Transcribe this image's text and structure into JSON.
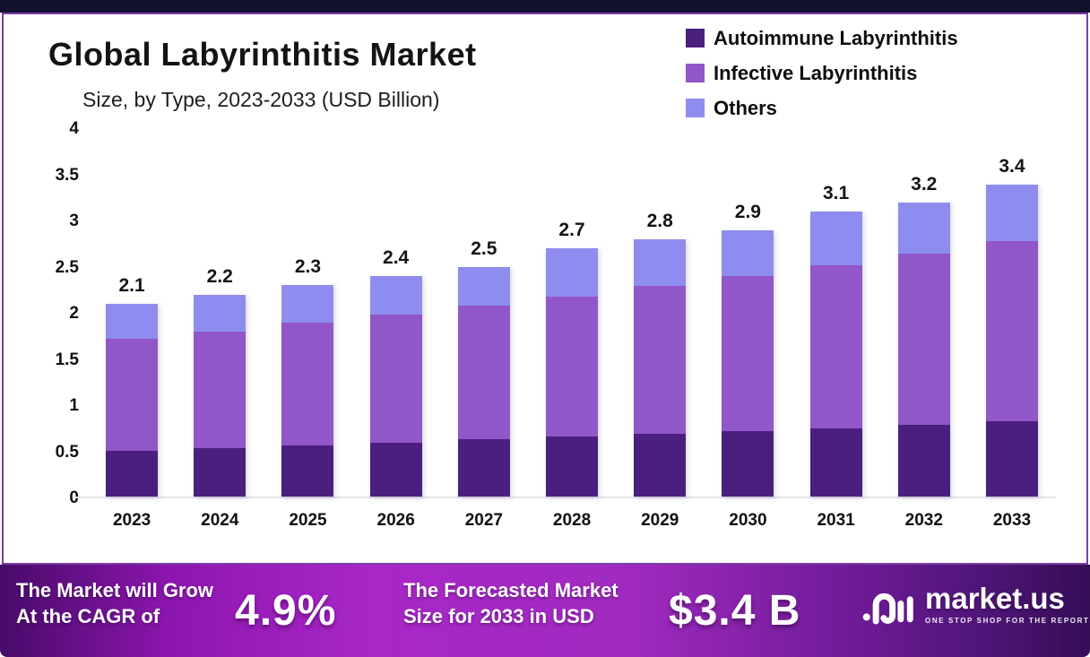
{
  "header": {
    "title": "Global Labyrinthitis Market",
    "subtitle": "Size, by Type, 2023-2033 (USD Billion)"
  },
  "legend": {
    "items": [
      {
        "label": "Autoimmune Labyrinthitis",
        "color": "#4A1F7E"
      },
      {
        "label": "Infective Labyrinthitis",
        "color": "#9156C8"
      },
      {
        "label": "Others",
        "color": "#8F8CEF"
      }
    ]
  },
  "chart_data": {
    "type": "bar",
    "stacked": true,
    "title": "Global Labyrinthitis Market Size, by Type, 2023-2033 (USD Billion)",
    "categories": [
      "2023",
      "2024",
      "2025",
      "2026",
      "2027",
      "2028",
      "2029",
      "2030",
      "2031",
      "2032",
      "2033"
    ],
    "series": [
      {
        "name": "Autoimmune Labyrinthitis",
        "color": "#4A1F7E",
        "values": [
          0.5,
          0.53,
          0.56,
          0.59,
          0.62,
          0.65,
          0.68,
          0.71,
          0.74,
          0.78,
          0.82
        ]
      },
      {
        "name": "Infective Labyrinthitis",
        "color": "#9156C8",
        "values": [
          1.22,
          1.27,
          1.33,
          1.39,
          1.46,
          1.53,
          1.61,
          1.69,
          1.78,
          1.86,
          1.96
        ]
      },
      {
        "name": "Others",
        "color": "#8F8CEF",
        "values": [
          0.38,
          0.4,
          0.41,
          0.42,
          0.42,
          0.52,
          0.51,
          0.5,
          0.58,
          0.56,
          0.62
        ]
      }
    ],
    "totals": [
      2.1,
      2.2,
      2.3,
      2.4,
      2.5,
      2.7,
      2.8,
      2.9,
      3.1,
      3.2,
      3.4
    ],
    "total_labels": [
      "2.1",
      "2.2",
      "2.3",
      "2.4",
      "2.5",
      "2.7",
      "2.8",
      "2.9",
      "3.1",
      "3.2",
      "3.4"
    ],
    "xlabel": "",
    "ylabel": "",
    "ylim": [
      0,
      4
    ],
    "yticks": [
      4,
      3.5,
      3,
      2.5,
      2,
      1.5,
      1,
      0.5,
      0
    ],
    "ytick_labels": [
      "4",
      "3.5",
      "3",
      "2.5",
      "2",
      "1.5",
      "1",
      "0.5",
      "0"
    ],
    "grid": false,
    "legend_position": "top-right"
  },
  "banner": {
    "growth_label_line1": "The Market will Grow",
    "growth_label_line2": "At the CAGR of",
    "cagr_value": "4.9%",
    "forecast_label_line1": "The Forecasted Market",
    "forecast_label_line2": "Size for 2033 in USD",
    "forecast_value": "$3.4 B",
    "brand_name": "market.us",
    "brand_tagline": "ONE STOP SHOP FOR THE REPORTS",
    "gradient": [
      "#470B68 0%",
      "#8E16B0 16%",
      "#A827C7 34%",
      "#A02ABF 58%",
      "#6F1B98 78%",
      "#4A1472 92%",
      "#350D55 100%"
    ]
  },
  "colors": {
    "panel_border": "#7B3DA8",
    "top_strip": "#12122E",
    "axis_line": "#E2E2E6"
  }
}
